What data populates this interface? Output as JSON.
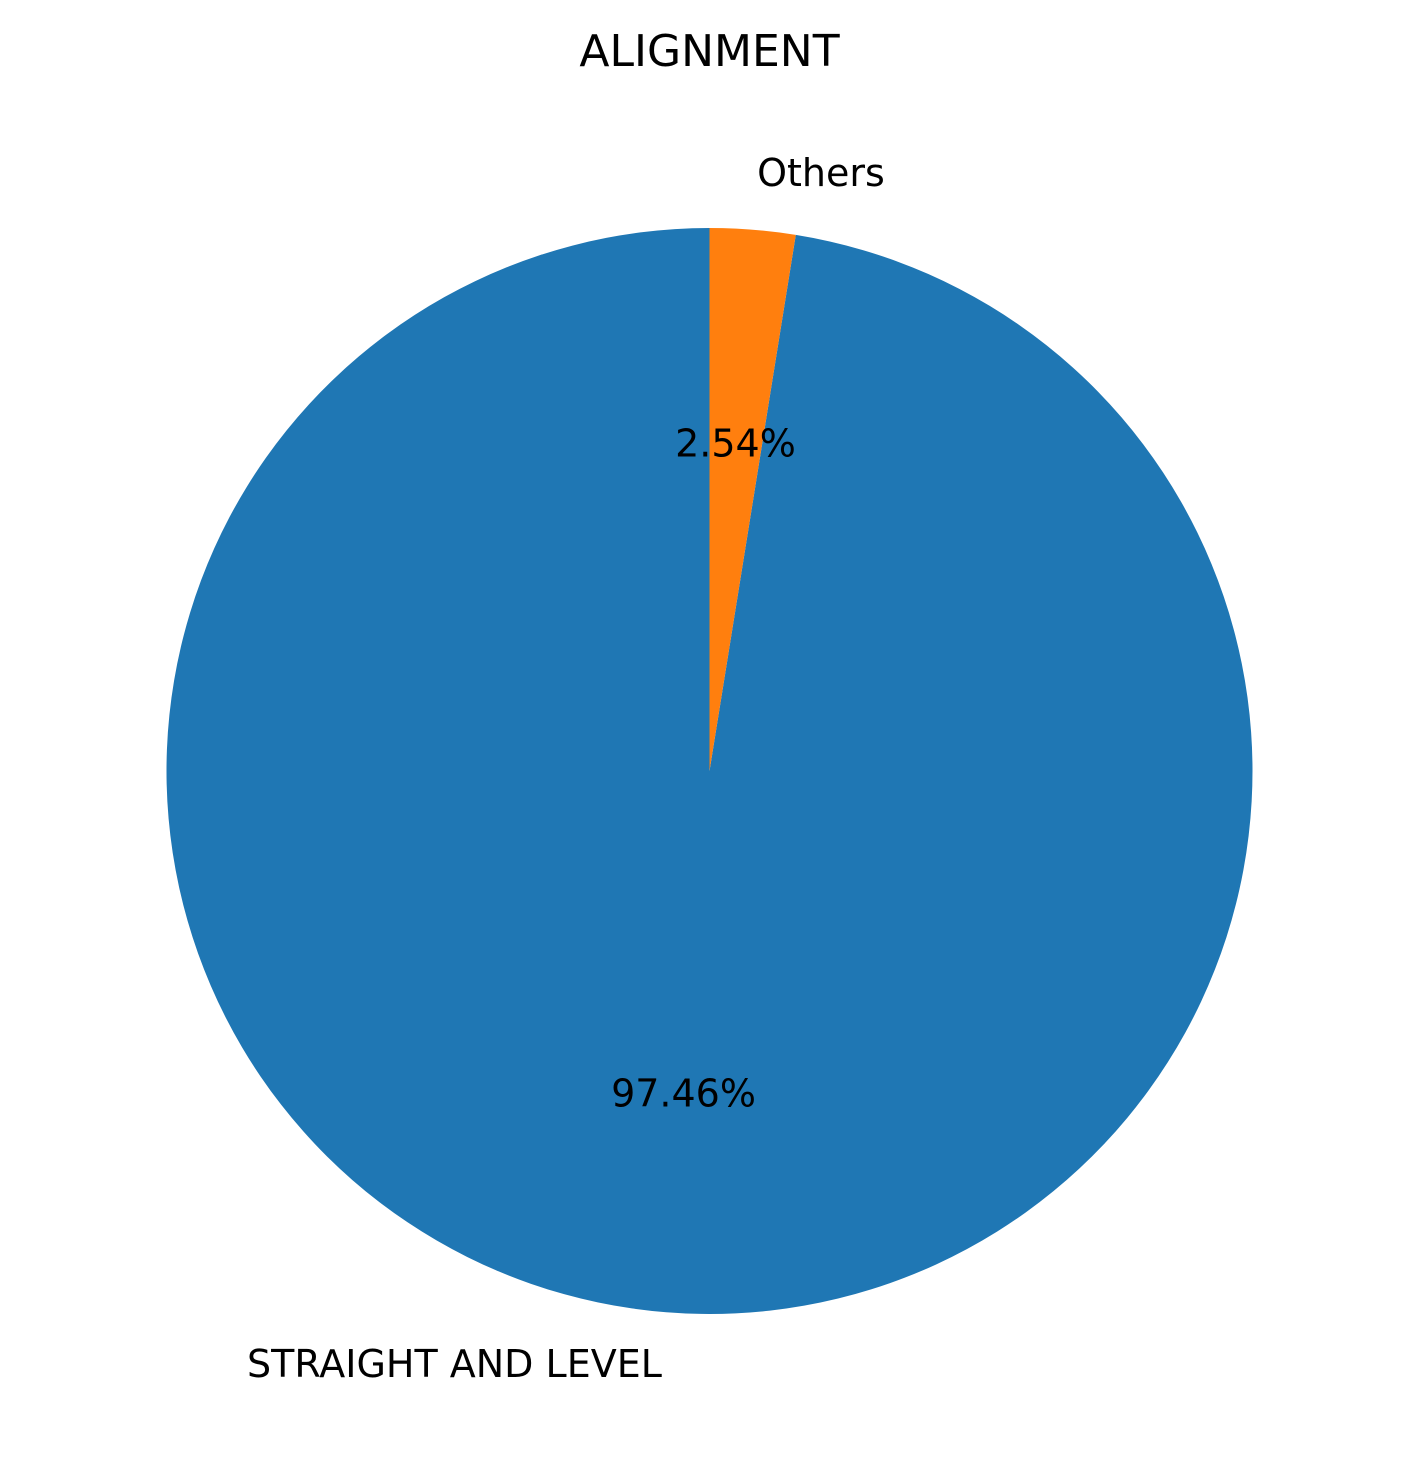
{
  "chart_data": {
    "type": "pie",
    "title": "ALIGNMENT",
    "slices": [
      {
        "label": "STRAIGHT AND LEVEL",
        "value": 97.46,
        "pct_label": "97.46%",
        "color": "#1f77b4"
      },
      {
        "label": "Others",
        "value": 2.54,
        "pct_label": "2.54%",
        "color": "#ff7f0e"
      }
    ],
    "start_angle_deg": 90,
    "direction": "counterclockwise",
    "legend": "none"
  }
}
